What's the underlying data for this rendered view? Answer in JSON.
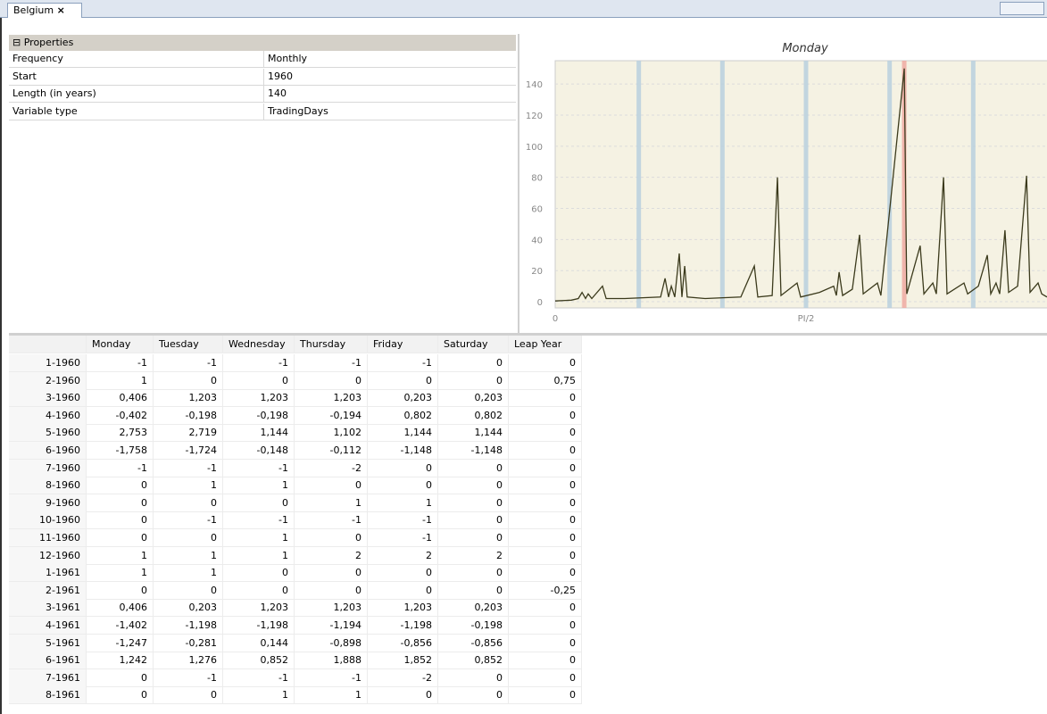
{
  "tab": {
    "title": "Belgium"
  },
  "properties": {
    "title": "Properties",
    "rows": [
      [
        "Frequency",
        "Monthly"
      ],
      [
        "Start",
        "1960"
      ],
      [
        "Length (in years)",
        "140"
      ],
      [
        "Variable type",
        "TradingDays"
      ]
    ]
  },
  "chart_data": {
    "type": "line",
    "title": "Monday",
    "x": [
      0,
      0.101,
      0.145,
      0.168,
      0.19,
      0.207,
      0.229,
      0.296,
      0.319,
      0.436,
      0.66,
      0.688,
      0.71,
      0.727,
      0.749,
      0.777,
      0.794,
      0.811,
      0.827,
      0.939,
      1.163,
      1.247,
      1.269,
      1.359,
      1.392,
      1.414,
      1.515,
      1.537,
      1.655,
      1.744,
      1.761,
      1.778,
      1.8,
      1.861,
      1.906,
      1.929,
      2.018,
      2.04,
      2.186,
      2.202,
      2.286,
      2.309,
      2.365,
      2.387,
      2.432,
      2.454,
      2.56,
      2.583,
      2.65,
      2.706,
      2.728,
      2.761,
      2.784,
      2.817,
      2.84,
      2.896,
      2.952,
      2.974,
      3.024,
      3.047,
      3.08
    ],
    "series": [
      {
        "name": "Monday",
        "color": "#3b3a1c",
        "values": [
          0.5,
          1,
          2,
          6,
          2,
          5,
          2,
          10,
          2,
          2,
          3,
          15,
          3,
          10,
          3,
          31,
          3,
          23,
          3,
          2,
          3,
          23,
          3,
          4,
          80,
          4,
          12,
          3,
          6,
          10,
          4,
          19,
          4,
          8,
          43,
          5,
          12,
          4,
          150,
          5,
          36,
          5,
          12,
          5,
          80,
          5,
          12,
          5,
          10,
          30,
          5,
          12,
          5,
          46,
          6,
          10,
          81,
          6,
          12,
          5,
          3
        ]
      }
    ],
    "markers": [
      {
        "x": 0.5236,
        "color": "#b9d0de"
      },
      {
        "x": 1.0472,
        "color": "#b9d0de"
      },
      {
        "x": 1.5708,
        "color": "#b9d0de"
      },
      {
        "x": 2.0944,
        "color": "#b9d0de"
      },
      {
        "x": 2.618,
        "color": "#b9d0de"
      },
      {
        "x": 2.186,
        "color": "#eeaaa2"
      }
    ],
    "xlim": [
      0,
      3.1416
    ],
    "ylim": [
      -4,
      155
    ],
    "xticks": [
      0,
      {
        "value": 1.5708,
        "label": "PI/2"
      }
    ],
    "yticks": [
      0,
      20,
      40,
      60,
      80,
      100,
      120,
      140
    ],
    "grid": true
  },
  "table": {
    "columns": [
      "Monday",
      "Tuesday",
      "Wednesday",
      "Thursday",
      "Friday",
      "Saturday",
      "Leap Year"
    ],
    "rows": [
      [
        "1-1960",
        "-1",
        "-1",
        "-1",
        "-1",
        "-1",
        "0",
        "0"
      ],
      [
        "2-1960",
        "1",
        "0",
        "0",
        "0",
        "0",
        "0",
        "0,75"
      ],
      [
        "3-1960",
        "0,406",
        "1,203",
        "1,203",
        "1,203",
        "0,203",
        "0,203",
        "0"
      ],
      [
        "4-1960",
        "-0,402",
        "-0,198",
        "-0,198",
        "-0,194",
        "0,802",
        "0,802",
        "0"
      ],
      [
        "5-1960",
        "2,753",
        "2,719",
        "1,144",
        "1,102",
        "1,144",
        "1,144",
        "0"
      ],
      [
        "6-1960",
        "-1,758",
        "-1,724",
        "-0,148",
        "-0,112",
        "-1,148",
        "-1,148",
        "0"
      ],
      [
        "7-1960",
        "-1",
        "-1",
        "-1",
        "-2",
        "0",
        "0",
        "0"
      ],
      [
        "8-1960",
        "0",
        "1",
        "1",
        "0",
        "0",
        "0",
        "0"
      ],
      [
        "9-1960",
        "0",
        "0",
        "0",
        "1",
        "1",
        "0",
        "0"
      ],
      [
        "10-1960",
        "0",
        "-1",
        "-1",
        "-1",
        "-1",
        "0",
        "0"
      ],
      [
        "11-1960",
        "0",
        "0",
        "1",
        "0",
        "-1",
        "0",
        "0"
      ],
      [
        "12-1960",
        "1",
        "1",
        "1",
        "2",
        "2",
        "2",
        "0"
      ],
      [
        "1-1961",
        "1",
        "1",
        "0",
        "0",
        "0",
        "0",
        "0"
      ],
      [
        "2-1961",
        "0",
        "0",
        "0",
        "0",
        "0",
        "0",
        "-0,25"
      ],
      [
        "3-1961",
        "0,406",
        "0,203",
        "1,203",
        "1,203",
        "1,203",
        "0,203",
        "0"
      ],
      [
        "4-1961",
        "-1,402",
        "-1,198",
        "-1,198",
        "-1,194",
        "-1,198",
        "-0,198",
        "0"
      ],
      [
        "5-1961",
        "-1,247",
        "-0,281",
        "0,144",
        "-0,898",
        "-0,856",
        "-0,856",
        "0"
      ],
      [
        "6-1961",
        "1,242",
        "1,276",
        "0,852",
        "1,888",
        "1,852",
        "0,852",
        "0"
      ],
      [
        "7-1961",
        "0",
        "-1",
        "-1",
        "-1",
        "-2",
        "0",
        "0"
      ],
      [
        "8-1961",
        "0",
        "0",
        "1",
        "1",
        "0",
        "0",
        "0"
      ]
    ]
  }
}
